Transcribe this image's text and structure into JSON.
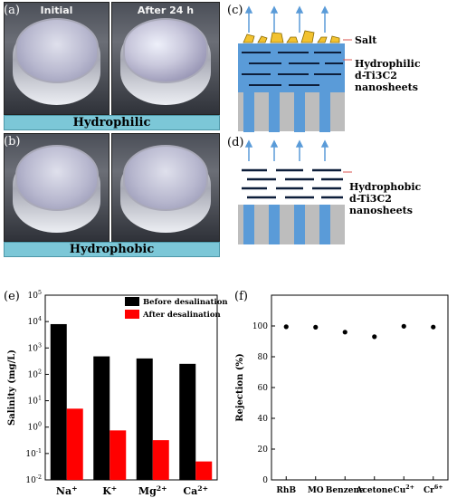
{
  "panels": {
    "a": {
      "label": "(a)",
      "left_caption": "Initial",
      "right_caption": "After 24 h",
      "bar_text": "Hydrophilic"
    },
    "b": {
      "label": "(b)",
      "bar_text": "Hydrophobic"
    },
    "c": {
      "label": "(c)",
      "salt_label": "Salt",
      "membrane_line1": "Hydrophilic",
      "membrane_line2": "d-Ti3C2",
      "membrane_line3": "nanosheets"
    },
    "d": {
      "label": "(d)",
      "membrane_line1": "Hydrophobic",
      "membrane_line2": "d-Ti3C2",
      "membrane_line3": "nanosheets"
    },
    "e": {
      "label": "(e)"
    },
    "f": {
      "label": "(f)"
    }
  },
  "colors": {
    "bar_cyan": "#7cc7d7",
    "membrane_blue": "#5a9bd8",
    "substrate_gray": "#bdbdbd",
    "salt_yellow": "#f2c230",
    "before": "#000000",
    "after": "#ff0000",
    "callout_line": "#d9534f"
  },
  "chart_data": [
    {
      "type": "bar",
      "panel": "e",
      "log_scale": true,
      "categories": [
        "Na+",
        "K+",
        "Mg2+",
        "Ca2+"
      ],
      "series": [
        {
          "name": "Before desalination",
          "color": "#000000",
          "values": [
            8000,
            480,
            400,
            250
          ]
        },
        {
          "name": "After desalination",
          "color": "#ff0000",
          "values": [
            5,
            0.75,
            0.32,
            0.05
          ]
        }
      ],
      "ylabel": "Salinity (mg/L)",
      "ylim": [
        0.01,
        100000
      ],
      "ytick_labels": [
        "10-2",
        "10-1",
        "100",
        "101",
        "102",
        "103",
        "104",
        "105"
      ],
      "legend": "top-right"
    },
    {
      "type": "scatter",
      "panel": "f",
      "categories": [
        "RhB",
        "MO",
        "Benzene",
        "Acetone",
        "Cu2+",
        "Cr6+"
      ],
      "values": [
        99.5,
        99.2,
        96.0,
        93.0,
        99.8,
        99.3
      ],
      "ylabel": "Rejection (%)",
      "ylim": [
        0,
        120
      ],
      "yticks": [
        0,
        20,
        40,
        60,
        80,
        100
      ]
    }
  ]
}
